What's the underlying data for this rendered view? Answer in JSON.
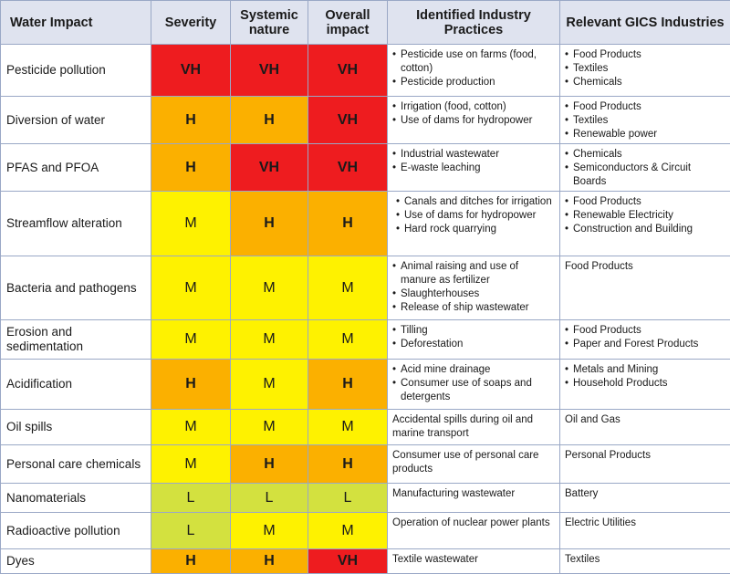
{
  "headers": {
    "impact": "Water Impact",
    "severity": "Severity",
    "systemic": "Systemic nature",
    "overall": "Overall impact",
    "practices": "Identified Industry Practices",
    "industries": "Relevant GICS Industries"
  },
  "colors": {
    "VH": "#ee1c1f",
    "H": "#fbb000",
    "M": "#fef200",
    "L": "#d3e13f"
  },
  "rows": [
    {
      "impact": "Pesticide pollution",
      "severity": "VH",
      "systemic": "VH",
      "overall": "VH",
      "practices": [
        "Pesticide use on farms (food, cotton)",
        "Pesticide production"
      ],
      "industries": [
        "Food Products",
        "Textiles",
        "Chemicals"
      ]
    },
    {
      "impact": "Diversion of water",
      "severity": "H",
      "systemic": "H",
      "overall": "VH",
      "practices": [
        "Irrigation (food, cotton)",
        "Use of dams for hydropower"
      ],
      "industries": [
        "Food Products",
        "Textiles",
        "Renewable power"
      ]
    },
    {
      "impact": "PFAS and PFOA",
      "severity": "H",
      "systemic": "VH",
      "overall": "VH",
      "practices": [
        "Industrial wastewater",
        "E-waste leaching"
      ],
      "industries": [
        "Chemicals",
        "Semiconductors & Circuit Boards"
      ]
    },
    {
      "impact": "Streamflow alteration",
      "severity": "M",
      "systemic": "H",
      "overall": "H",
      "practices": [
        "Canals and ditches for irrigation",
        "Use of dams for hydropower",
        "Hard rock quarrying"
      ],
      "industries": [
        "Food Products",
        "Renewable Electricity",
        "Construction and Building"
      ]
    },
    {
      "impact": "Bacteria and pathogens",
      "severity": "M",
      "systemic": "M",
      "overall": "M",
      "practices": [
        "Animal raising and use of manure as fertilizer",
        "Slaughterhouses",
        "Release of ship wastewater"
      ],
      "industries": [
        "Food Products"
      ]
    },
    {
      "impact": "Erosion and sedimentation",
      "severity": "M",
      "systemic": "M",
      "overall": "M",
      "practices": [
        "Tilling",
        "Deforestation"
      ],
      "industries": [
        "Food Products",
        "Paper and Forest Products"
      ]
    },
    {
      "impact": "Acidification",
      "severity": "H",
      "systemic": "M",
      "overall": "H",
      "practices": [
        "Acid mine drainage",
        "Consumer use of soaps and detergents"
      ],
      "industries": [
        "Metals and Mining",
        "Household Products"
      ]
    },
    {
      "impact": "Oil spills",
      "severity": "M",
      "systemic": "M",
      "overall": "M",
      "practices": [
        "Accidental spills during oil and marine transport"
      ],
      "industries": [
        "Oil and Gas"
      ]
    },
    {
      "impact": "Personal care chemicals",
      "severity": "M",
      "systemic": "H",
      "overall": "H",
      "practices": [
        "Consumer use of personal care products"
      ],
      "industries": [
        "Personal Products"
      ]
    },
    {
      "impact": "Nanomaterials",
      "severity": "L",
      "systemic": "L",
      "overall": "L",
      "practices": [
        "Manufacturing wastewater"
      ],
      "industries": [
        "Battery"
      ]
    },
    {
      "impact": "Radioactive pollution",
      "severity": "L",
      "systemic": "M",
      "overall": "M",
      "practices": [
        "Operation of nuclear power plants"
      ],
      "industries": [
        "Electric Utilities"
      ]
    },
    {
      "impact": "Dyes",
      "severity": "H",
      "systemic": "H",
      "overall": "VH",
      "practices": [
        "Textile wastewater"
      ],
      "industries": [
        "Textiles"
      ]
    }
  ]
}
